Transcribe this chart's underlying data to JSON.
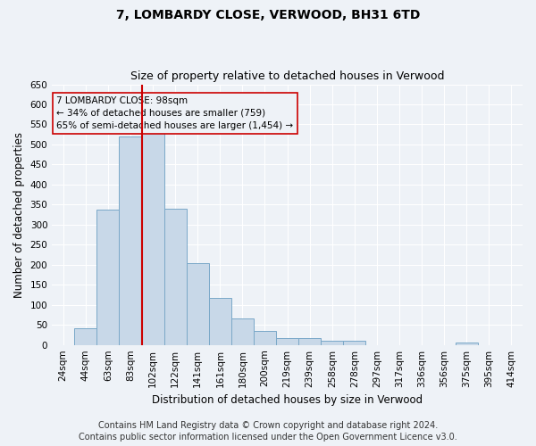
{
  "title": "7, LOMBARDY CLOSE, VERWOOD, BH31 6TD",
  "subtitle": "Size of property relative to detached houses in Verwood",
  "xlabel": "Distribution of detached houses by size in Verwood",
  "ylabel": "Number of detached properties",
  "footer_line1": "Contains HM Land Registry data © Crown copyright and database right 2024.",
  "footer_line2": "Contains public sector information licensed under the Open Government Licence v3.0.",
  "annotation_line1": "7 LOMBARDY CLOSE: 98sqm",
  "annotation_line2": "← 34% of detached houses are smaller (759)",
  "annotation_line3": "65% of semi-detached houses are larger (1,454) →",
  "bar_color": "#c8d8e8",
  "bar_edge_color": "#7aa8c8",
  "marker_color": "#cc0000",
  "marker_bin_index": 4,
  "categories": [
    "24sqm",
    "44sqm",
    "63sqm",
    "83sqm",
    "102sqm",
    "122sqm",
    "141sqm",
    "161sqm",
    "180sqm",
    "200sqm",
    "219sqm",
    "239sqm",
    "258sqm",
    "278sqm",
    "297sqm",
    "317sqm",
    "336sqm",
    "356sqm",
    "375sqm",
    "395sqm",
    "414sqm"
  ],
  "values": [
    0,
    42,
    338,
    520,
    535,
    340,
    203,
    117,
    66,
    35,
    18,
    18,
    10,
    10,
    0,
    0,
    0,
    0,
    5,
    0,
    0
  ],
  "ylim": [
    0,
    650
  ],
  "yticks": [
    0,
    50,
    100,
    150,
    200,
    250,
    300,
    350,
    400,
    450,
    500,
    550,
    600,
    650
  ],
  "bg_color": "#eef2f7",
  "grid_color": "#ffffff",
  "title_fontsize": 10,
  "subtitle_fontsize": 9,
  "axis_label_fontsize": 8.5,
  "tick_fontsize": 7.5,
  "annotation_fontsize": 7.5,
  "footer_fontsize": 7
}
